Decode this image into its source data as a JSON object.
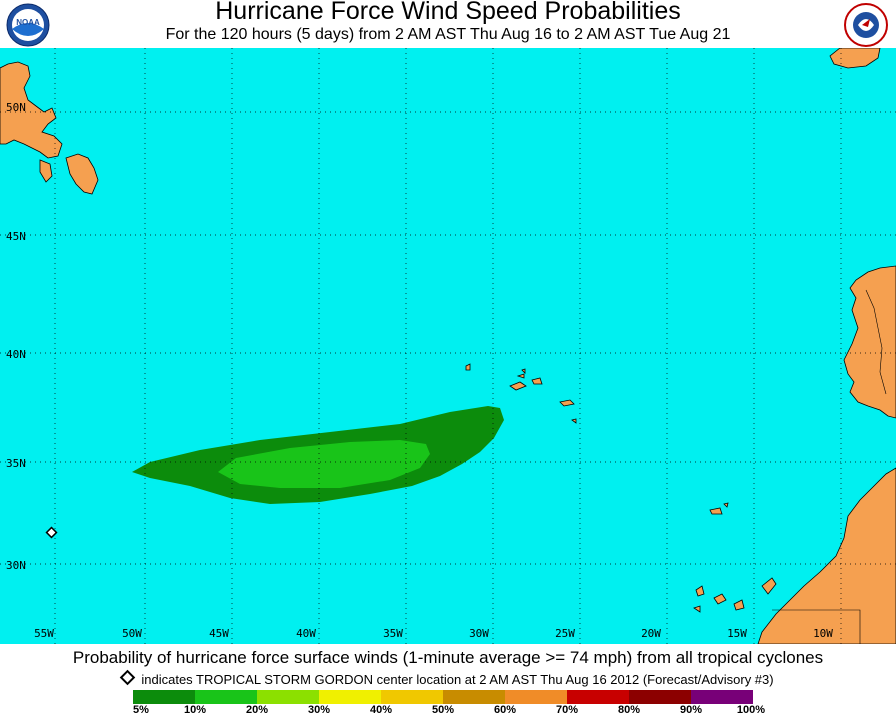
{
  "header": {
    "title": "Hurricane Force Wind Speed Probabilities",
    "subtitle": "For the 120 hours (5 days) from 2 AM AST Thu Aug 16 to 2 AM AST Tue Aug 21",
    "logo_left": "NOAA",
    "logo_right": "NATIONAL WEATHER SERVICE"
  },
  "map": {
    "ocean_color": "#00f0f0",
    "land_color": "#f5a050",
    "lat_labels": [
      "50N",
      "45N",
      "40N",
      "35N",
      "30N"
    ],
    "lon_labels": [
      "55W",
      "50W",
      "45W",
      "40W",
      "35W",
      "30W",
      "25W",
      "20W",
      "15W",
      "10W"
    ],
    "storm_marker": "diamond-icon",
    "prob_regions": [
      {
        "range": "5%-10%",
        "color": "#0c8c0c"
      },
      {
        "range": "10%-20%",
        "color": "#19c419"
      }
    ]
  },
  "footer": {
    "caption": "Probability of hurricane force surface winds (1-minute average >= 74 mph) from all tropical cyclones",
    "indicator_text": "indicates TROPICAL STORM GORDON center location at 2 AM AST Thu Aug 16 2012 (Forecast/Advisory #3)"
  },
  "legend": {
    "labels": [
      "5%",
      "10%",
      "20%",
      "30%",
      "40%",
      "50%",
      "60%",
      "70%",
      "80%",
      "90%",
      "100%"
    ],
    "colors": [
      "#0c8c0c",
      "#19c419",
      "#8ce000",
      "#f0f000",
      "#f0c800",
      "#c88c00",
      "#f08c28",
      "#c80000",
      "#8c0000",
      "#780078"
    ]
  }
}
